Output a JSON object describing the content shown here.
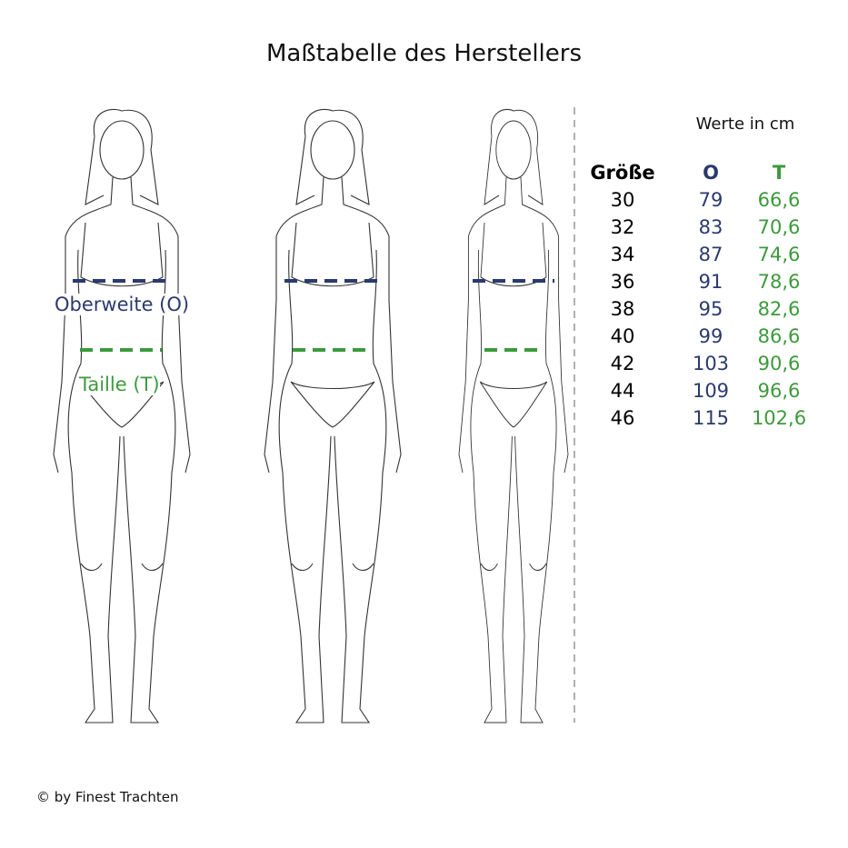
{
  "title": "Maßtabelle des Herstellers",
  "labels": {
    "bust": "Oberweite (O)",
    "waist": "Taille (T)"
  },
  "table": {
    "unit_note": "Werte in cm",
    "headers": [
      "Größe",
      "O",
      "T"
    ],
    "rows": [
      [
        "30",
        "79",
        "66,6"
      ],
      [
        "32",
        "83",
        "70,6"
      ],
      [
        "34",
        "87",
        "74,6"
      ],
      [
        "36",
        "91",
        "78,6"
      ],
      [
        "38",
        "95",
        "82,6"
      ],
      [
        "40",
        "99",
        "86,6"
      ],
      [
        "42",
        "103",
        "90,6"
      ],
      [
        "44",
        "109",
        "96,6"
      ],
      [
        "46",
        "115",
        "102,6"
      ]
    ]
  },
  "colors": {
    "bust": "#2b3a6e",
    "waist": "#3c9a3c",
    "divider": "#b0b0b0"
  },
  "figures": [
    "front-view",
    "back-view",
    "side-view"
  ],
  "copyright": "© by Finest Trachten"
}
